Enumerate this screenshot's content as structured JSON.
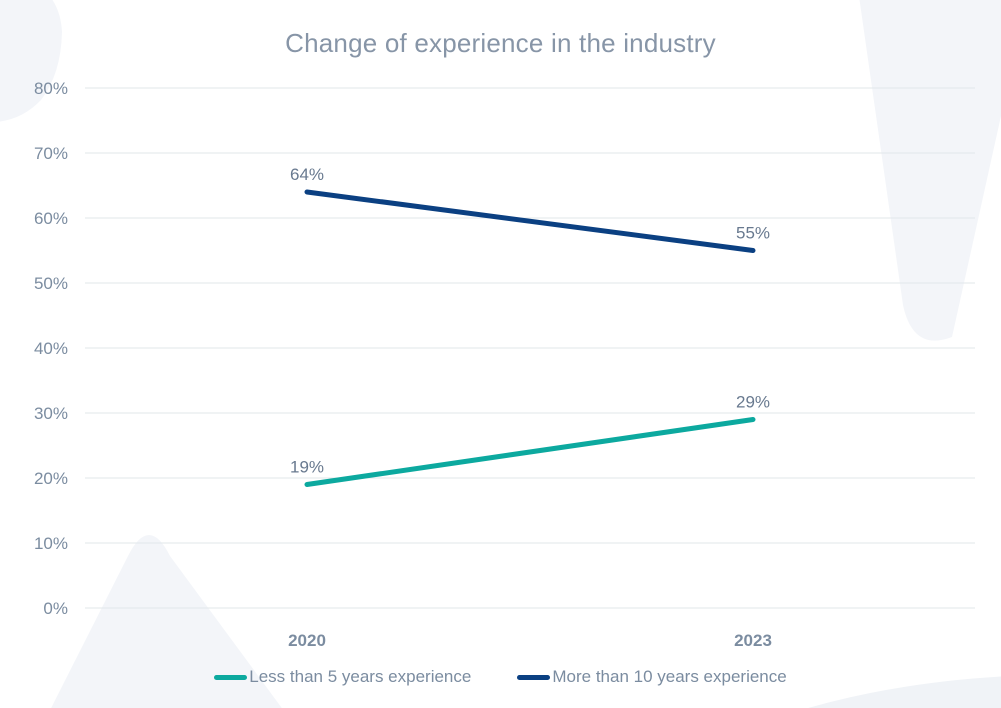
{
  "chart_data": {
    "type": "line",
    "title": "Change of experience in the industry",
    "x_categories": [
      "2020",
      "2023"
    ],
    "series": [
      {
        "name": "Less than 5 years experience",
        "color": "#0ca99f",
        "values": [
          19,
          29
        ],
        "point_labels": [
          "19%",
          "29%"
        ]
      },
      {
        "name": "More than 10 years experience",
        "color": "#0b4082",
        "values": [
          64,
          55
        ],
        "point_labels": [
          "64%",
          "55%"
        ]
      }
    ],
    "y_axis": {
      "min": 0,
      "max": 80,
      "step": 10,
      "tick_suffix": "%",
      "tick_labels": [
        "0%",
        "10%",
        "20%",
        "30%",
        "40%",
        "50%",
        "60%",
        "70%",
        "80%"
      ]
    },
    "grid": "horizontal",
    "legend_position": "bottom"
  },
  "colors": {
    "background": "#ffffff",
    "decor_shape": "#f3f5f9",
    "decor_shape_faint": "#f0f3f7",
    "gridline": "#e2e7ea",
    "title_text": "#8795a7",
    "axis_text": "#7b8ca0",
    "data_label_text": "#68798f"
  }
}
